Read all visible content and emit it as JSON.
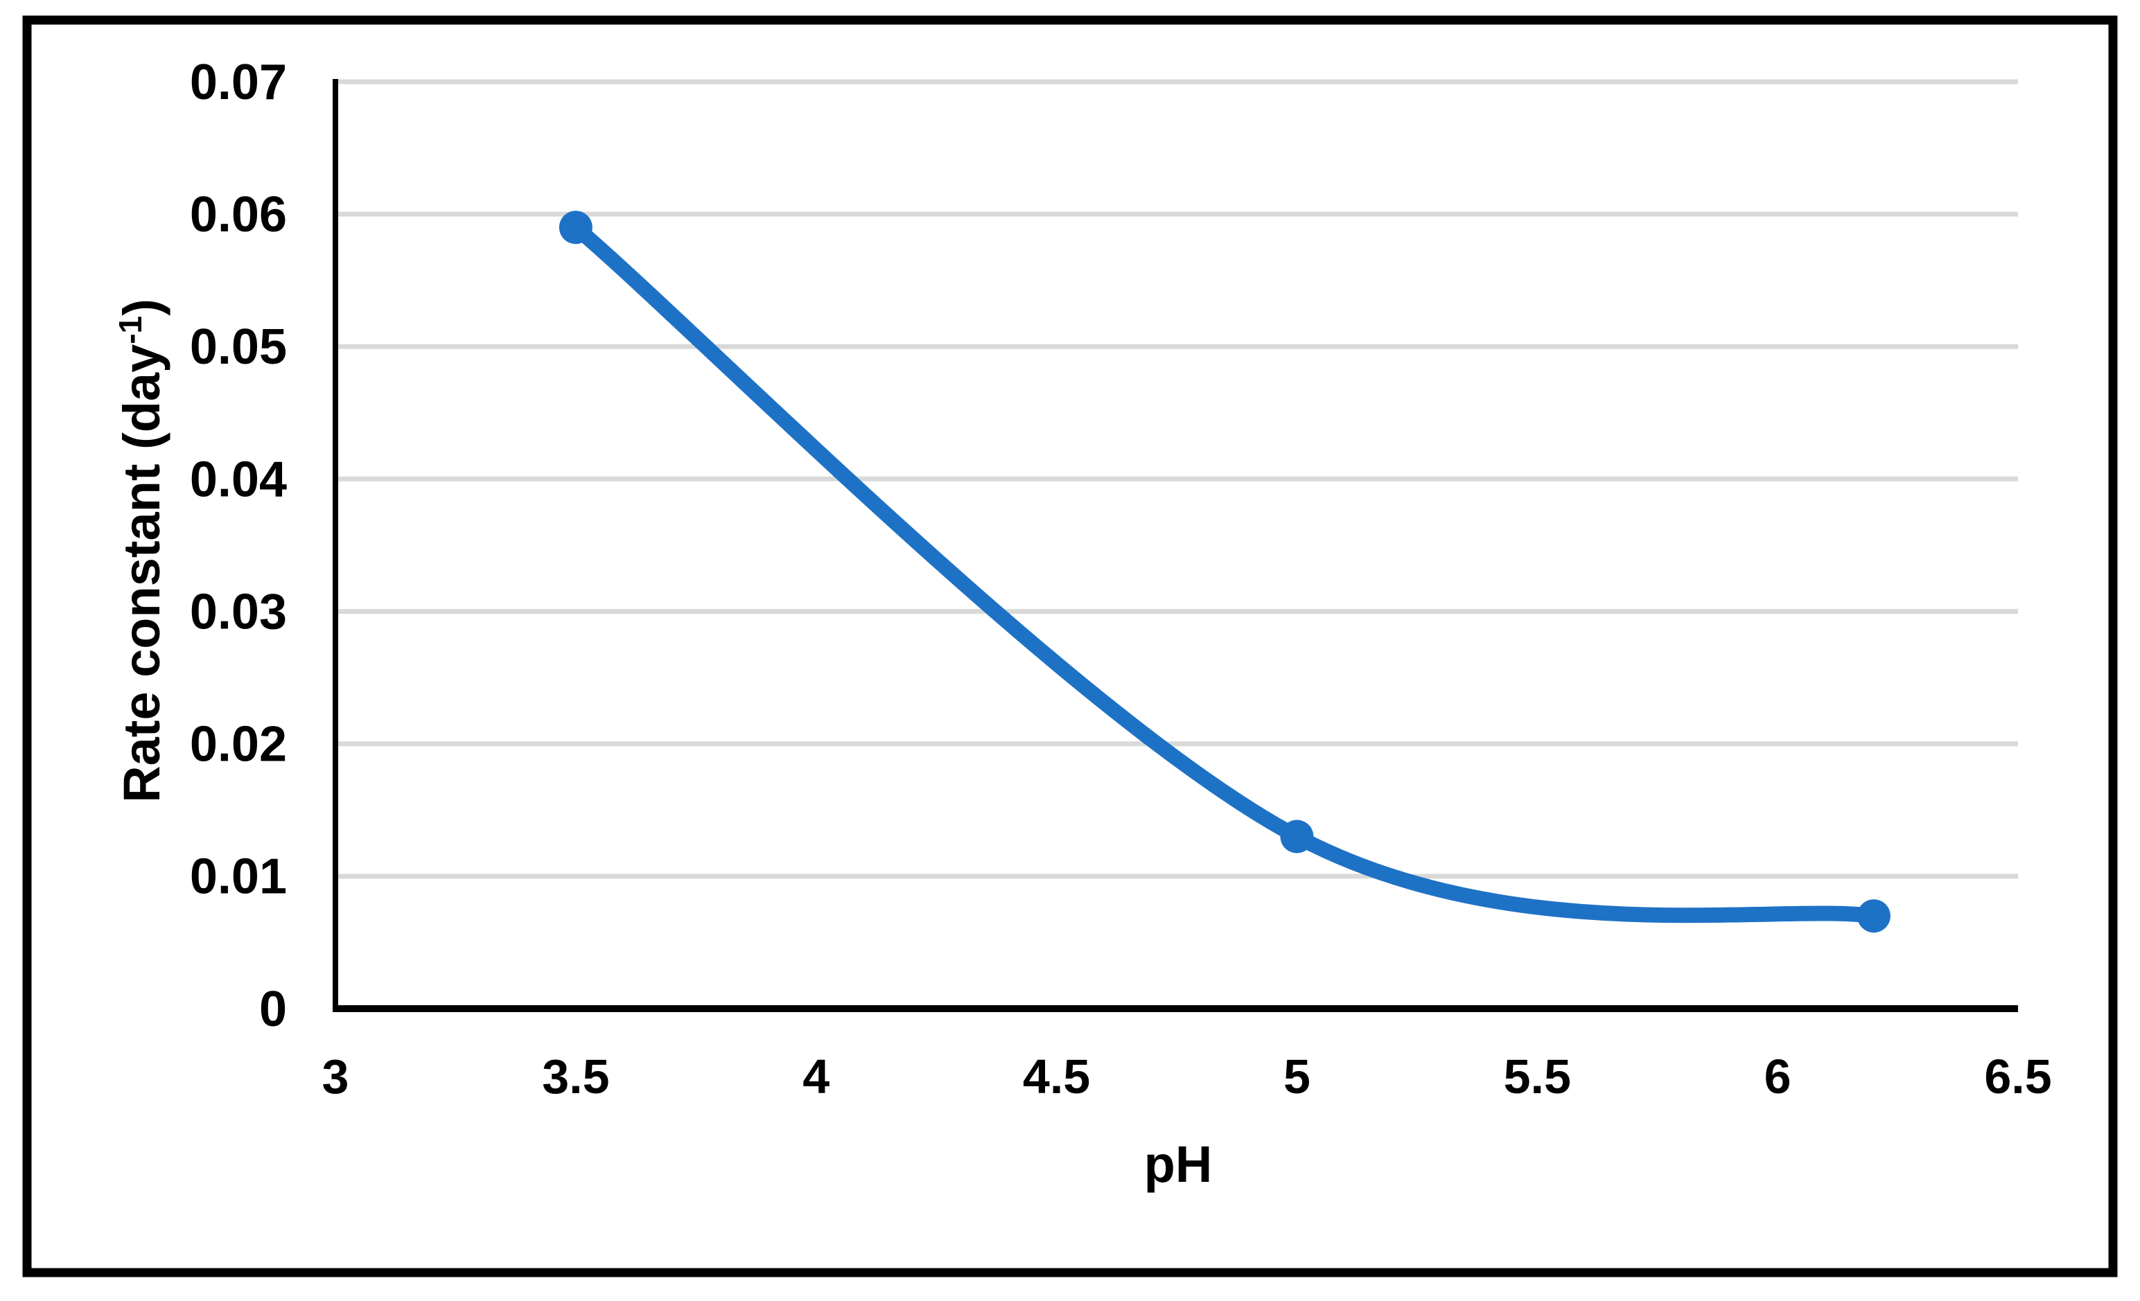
{
  "chart_data": {
    "type": "line",
    "title": "",
    "xlabel": "pH",
    "ylabel": "Rate constant (day⁻¹)",
    "ylabel_parts": {
      "pre": "Rate constant (day",
      "sup": "-1",
      "post": ")"
    },
    "series": [
      {
        "name": "Rate constant",
        "x": [
          3.5,
          5.0,
          6.2
        ],
        "y": [
          0.059,
          0.013,
          0.007
        ]
      }
    ],
    "xlim": [
      3,
      6.5
    ],
    "ylim": [
      0,
      0.07
    ],
    "xticks": [
      3,
      3.5,
      4,
      4.5,
      5,
      5.5,
      6,
      6.5
    ],
    "xtick_labels": [
      "3",
      "3.5",
      "4",
      "4.5",
      "5",
      "5.5",
      "6",
      "6.5"
    ],
    "yticks": [
      0,
      0.01,
      0.02,
      0.03,
      0.04,
      0.05,
      0.06,
      0.07
    ],
    "ytick_labels": [
      "0",
      "0.01",
      "0.02",
      "0.03",
      "0.04",
      "0.05",
      "0.06",
      "0.07"
    ],
    "grid": "horizontal-only",
    "legend": "none",
    "line_smooth": true,
    "marker": "circle",
    "colors": {
      "line": "#1E72C6",
      "marker": "#1E72C6",
      "grid": "#D9D9D9",
      "axis": "#000000",
      "text": "#000000",
      "frame_border": "#000000",
      "background": "#FFFFFF"
    }
  }
}
